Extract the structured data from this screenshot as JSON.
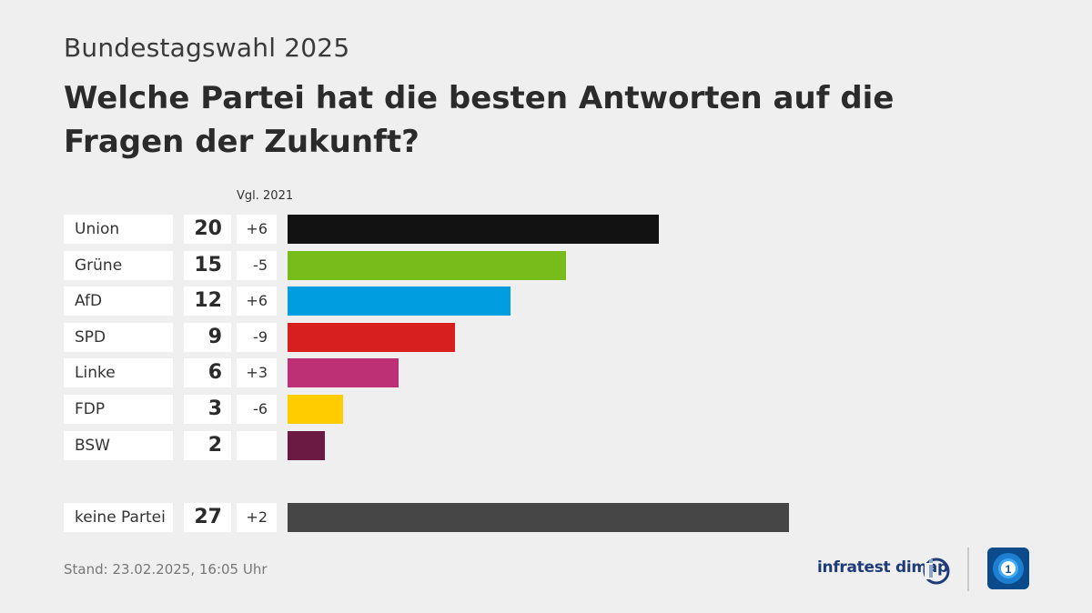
{
  "header": {
    "subtitle": "Bundestagswahl 2025",
    "title": "Welche Partei hat die besten Antworten auf die Fragen der Zukunft?"
  },
  "chart_data": {
    "type": "bar",
    "orientation": "horizontal",
    "compare_label": "Vgl. 2021",
    "categories": [
      "Union",
      "Grüne",
      "AfD",
      "SPD",
      "Linke",
      "FDP",
      "BSW",
      "keine Partei"
    ],
    "values": [
      20,
      15,
      12,
      9,
      6,
      3,
      2,
      27
    ],
    "changes": [
      "+6",
      "-5",
      "+6",
      "-9",
      "+3",
      "-6",
      "",
      "+2"
    ],
    "colors": [
      "#121212",
      "#78bc1b",
      "#009ee0",
      "#d71f1d",
      "#bd3075",
      "#ffcc00",
      "#6b1a43",
      "#464646"
    ],
    "xlim": [
      0,
      27
    ]
  },
  "footer": {
    "stand": "Stand:  23.02.2025, 16:05 Uhr",
    "brand": "infratest dimap"
  }
}
